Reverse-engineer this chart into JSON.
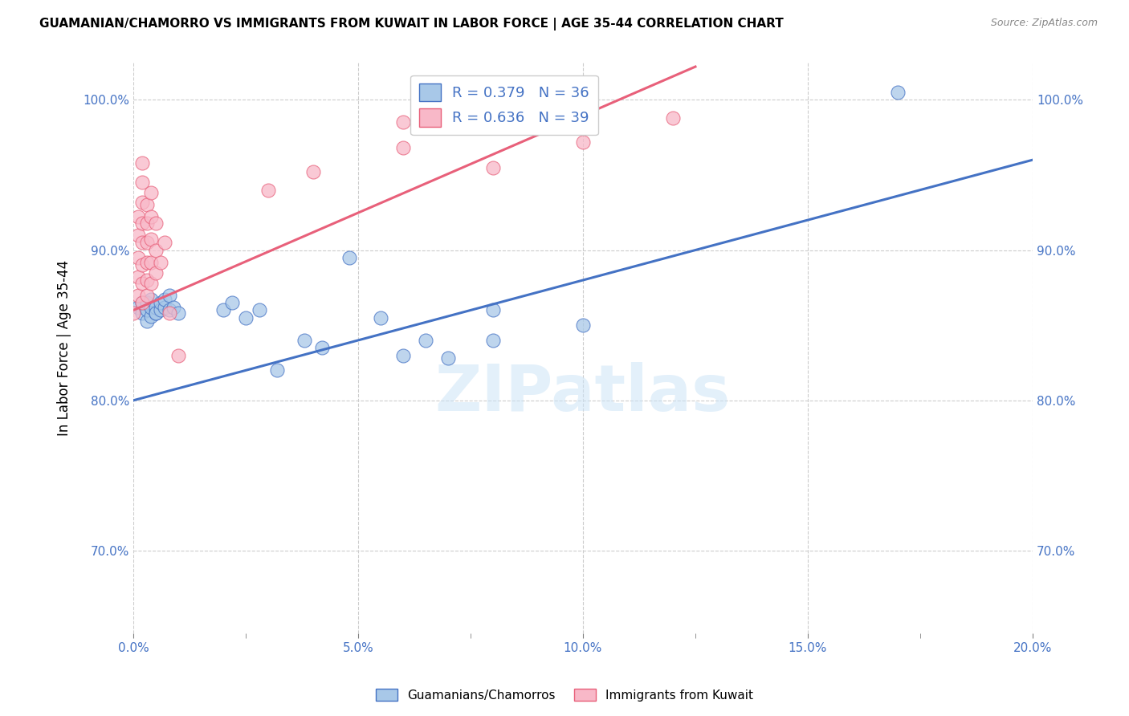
{
  "title": "GUAMANIAN/CHAMORRO VS IMMIGRANTS FROM KUWAIT IN LABOR FORCE | AGE 35-44 CORRELATION CHART",
  "source": "Source: ZipAtlas.com",
  "ylabel": "In Labor Force | Age 35-44",
  "x_min": 0.0,
  "x_max": 0.2,
  "y_min": 0.645,
  "y_max": 1.025,
  "x_tick_labels": [
    "0.0%",
    "",
    "5.0%",
    "",
    "10.0%",
    "",
    "15.0%",
    "",
    "20.0%"
  ],
  "x_tick_vals": [
    0.0,
    0.025,
    0.05,
    0.075,
    0.1,
    0.125,
    0.15,
    0.175,
    0.2
  ],
  "y_tick_labels": [
    "70.0%",
    "80.0%",
    "90.0%",
    "100.0%"
  ],
  "y_tick_vals": [
    0.7,
    0.8,
    0.9,
    1.0
  ],
  "blue_color": "#a8c8e8",
  "pink_color": "#f8b8c8",
  "blue_line_color": "#4472c4",
  "pink_line_color": "#e8607a",
  "legend_r_color": "#4472c4",
  "watermark_text": "ZIPatlas",
  "legend_label1": "Guamanians/Chamorros",
  "legend_label2": "Immigrants from Kuwait",
  "blue_R": 0.379,
  "blue_N": 36,
  "pink_R": 0.636,
  "pink_N": 39,
  "blue_points": [
    [
      0.001,
      0.862
    ],
    [
      0.002,
      0.858
    ],
    [
      0.002,
      0.865
    ],
    [
      0.003,
      0.853
    ],
    [
      0.003,
      0.86
    ],
    [
      0.003,
      0.865
    ],
    [
      0.004,
      0.856
    ],
    [
      0.004,
      0.862
    ],
    [
      0.004,
      0.867
    ],
    [
      0.005,
      0.858
    ],
    [
      0.005,
      0.862
    ],
    [
      0.005,
      0.858
    ],
    [
      0.006,
      0.86
    ],
    [
      0.006,
      0.865
    ],
    [
      0.007,
      0.862
    ],
    [
      0.007,
      0.867
    ],
    [
      0.008,
      0.86
    ],
    [
      0.008,
      0.87
    ],
    [
      0.009,
      0.862
    ],
    [
      0.01,
      0.858
    ],
    [
      0.02,
      0.86
    ],
    [
      0.022,
      0.865
    ],
    [
      0.025,
      0.855
    ],
    [
      0.028,
      0.86
    ],
    [
      0.032,
      0.82
    ],
    [
      0.038,
      0.84
    ],
    [
      0.042,
      0.835
    ],
    [
      0.048,
      0.895
    ],
    [
      0.055,
      0.855
    ],
    [
      0.06,
      0.83
    ],
    [
      0.065,
      0.84
    ],
    [
      0.07,
      0.828
    ],
    [
      0.08,
      0.86
    ],
    [
      0.08,
      0.84
    ],
    [
      0.1,
      0.85
    ],
    [
      0.17,
      1.005
    ]
  ],
  "pink_points": [
    [
      0.0,
      0.858
    ],
    [
      0.001,
      0.87
    ],
    [
      0.001,
      0.882
    ],
    [
      0.001,
      0.895
    ],
    [
      0.001,
      0.91
    ],
    [
      0.001,
      0.922
    ],
    [
      0.002,
      0.865
    ],
    [
      0.002,
      0.878
    ],
    [
      0.002,
      0.89
    ],
    [
      0.002,
      0.905
    ],
    [
      0.002,
      0.918
    ],
    [
      0.002,
      0.932
    ],
    [
      0.002,
      0.945
    ],
    [
      0.002,
      0.958
    ],
    [
      0.003,
      0.87
    ],
    [
      0.003,
      0.88
    ],
    [
      0.003,
      0.892
    ],
    [
      0.003,
      0.905
    ],
    [
      0.003,
      0.918
    ],
    [
      0.003,
      0.93
    ],
    [
      0.004,
      0.878
    ],
    [
      0.004,
      0.892
    ],
    [
      0.004,
      0.907
    ],
    [
      0.004,
      0.922
    ],
    [
      0.004,
      0.938
    ],
    [
      0.005,
      0.885
    ],
    [
      0.005,
      0.9
    ],
    [
      0.005,
      0.918
    ],
    [
      0.006,
      0.892
    ],
    [
      0.007,
      0.905
    ],
    [
      0.008,
      0.858
    ],
    [
      0.01,
      0.83
    ],
    [
      0.03,
      0.94
    ],
    [
      0.04,
      0.952
    ],
    [
      0.06,
      0.985
    ],
    [
      0.06,
      0.968
    ],
    [
      0.08,
      0.955
    ],
    [
      0.1,
      0.972
    ],
    [
      0.12,
      0.988
    ]
  ],
  "blue_line_x": [
    0.0,
    0.2
  ],
  "blue_line_y": [
    0.8,
    0.96
  ],
  "pink_line_x": [
    0.0,
    0.125
  ],
  "pink_line_y": [
    0.86,
    1.022
  ]
}
